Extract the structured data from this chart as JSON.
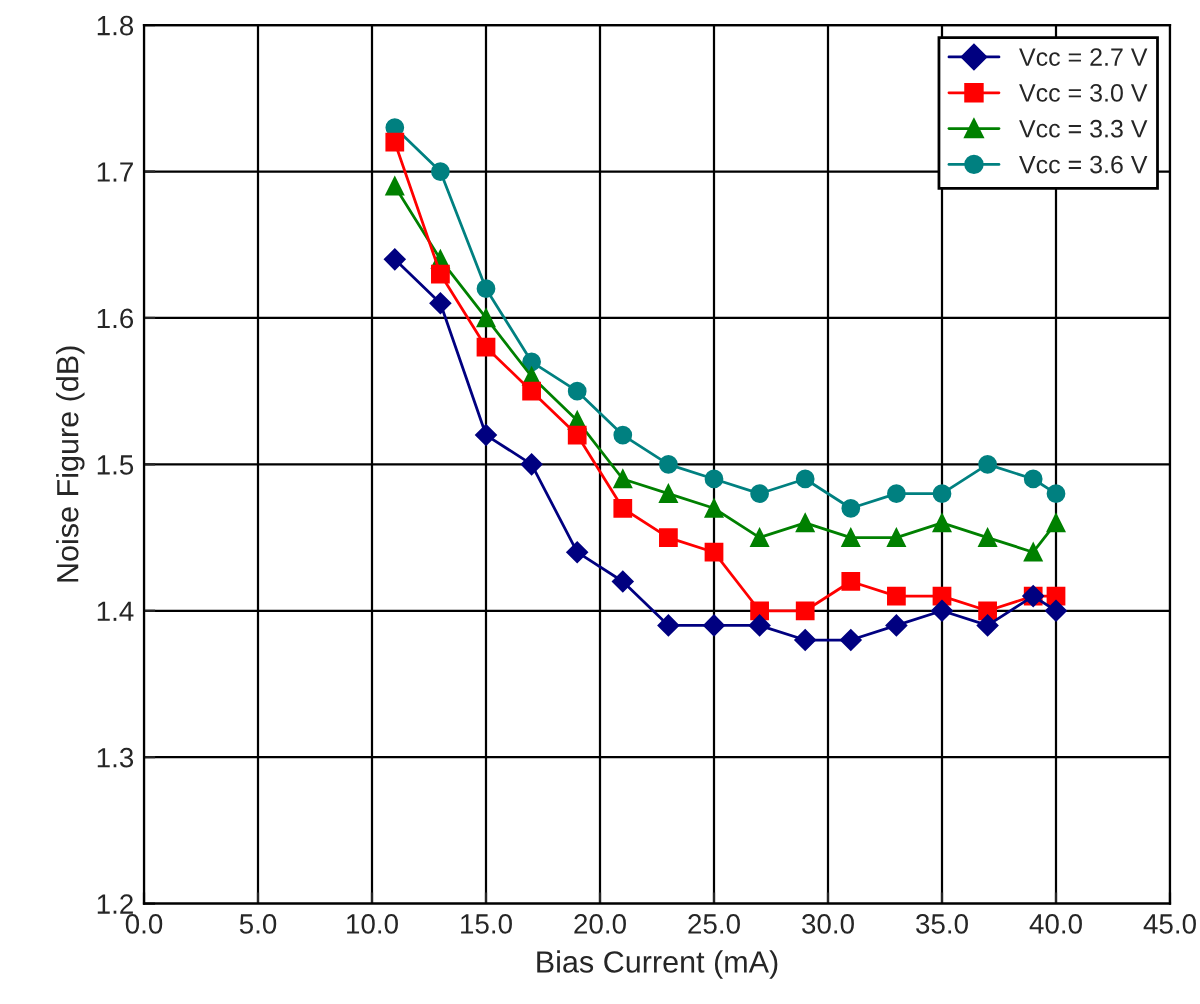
{
  "chart_data": {
    "type": "line",
    "xlabel": "Bias Current (mA)",
    "ylabel": "Noise Figure (dB)",
    "x": [
      11,
      13,
      15,
      17,
      19,
      21,
      23,
      25,
      27,
      29,
      31,
      33,
      35,
      37,
      39,
      40
    ],
    "series": [
      {
        "name": "Vcc = 2.7 V",
        "color": "#000080",
        "marker": "diamond",
        "values": [
          1.64,
          1.61,
          1.52,
          1.5,
          1.44,
          1.42,
          1.39,
          1.39,
          1.39,
          1.38,
          1.38,
          1.39,
          1.4,
          1.39,
          1.41,
          1.4
        ]
      },
      {
        "name": "Vcc = 3.0 V",
        "color": "#ff0000",
        "marker": "square",
        "values": [
          1.72,
          1.63,
          1.58,
          1.55,
          1.52,
          1.47,
          1.45,
          1.44,
          1.4,
          1.4,
          1.42,
          1.41,
          1.41,
          1.4,
          1.41,
          1.41
        ]
      },
      {
        "name": "Vcc = 3.3 V",
        "color": "#008000",
        "marker": "triangle",
        "values": [
          1.69,
          1.64,
          1.6,
          1.56,
          1.53,
          1.49,
          1.48,
          1.47,
          1.45,
          1.46,
          1.45,
          1.45,
          1.46,
          1.45,
          1.44,
          1.46
        ]
      },
      {
        "name": "Vcc = 3.6 V",
        "color": "#008080",
        "marker": "circle",
        "values": [
          1.73,
          1.7,
          1.62,
          1.57,
          1.55,
          1.52,
          1.5,
          1.49,
          1.48,
          1.49,
          1.47,
          1.48,
          1.48,
          1.5,
          1.49,
          1.48
        ]
      }
    ],
    "xlim": [
      0,
      45
    ],
    "xticks": [
      {
        "value": 0,
        "label": "0.0"
      },
      {
        "value": 5,
        "label": "5.0"
      },
      {
        "value": 10,
        "label": "10.0"
      },
      {
        "value": 15,
        "label": "15.0"
      },
      {
        "value": 20,
        "label": "20.0"
      },
      {
        "value": 25,
        "label": "25.0"
      },
      {
        "value": 30,
        "label": "30.0"
      },
      {
        "value": 35,
        "label": "35.0"
      },
      {
        "value": 40,
        "label": "40.0"
      },
      {
        "value": 45,
        "label": "45.0"
      }
    ],
    "ylim": [
      1.2,
      1.8
    ],
    "yticks": [
      1.2,
      1.3,
      1.4,
      1.5,
      1.6,
      1.7,
      1.8
    ],
    "grid": true,
    "legend": "top right",
    "line_style": "solid"
  }
}
